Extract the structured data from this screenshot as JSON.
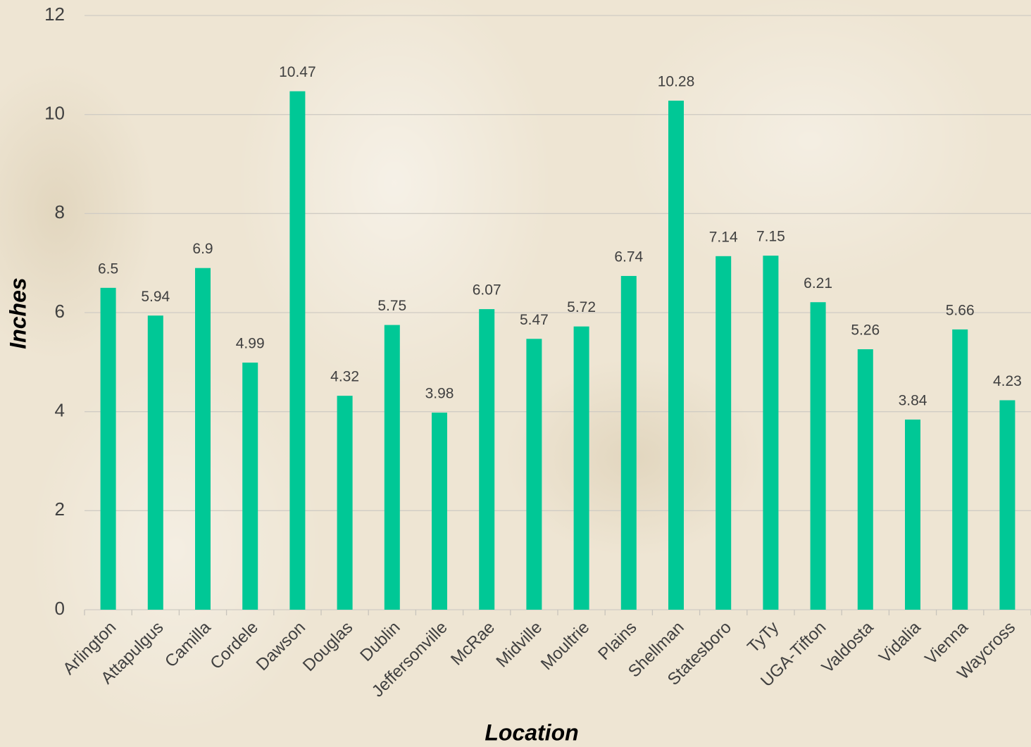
{
  "chart_data": {
    "type": "bar",
    "x_label": "Location",
    "y_label": "Inches",
    "categories": [
      "Arlington",
      "Attapulgus",
      "Camilla",
      "Cordele",
      "Dawson",
      "Douglas",
      "Dublin",
      "Jeffersonville",
      "McRae",
      "Midville",
      "Moultrie",
      "Plains",
      "Shellman",
      "Statesboro",
      "TyTy",
      "UGA-Tifton",
      "Valdosta",
      "Vidalia",
      "Vienna",
      "Waycross"
    ],
    "values": [
      6.5,
      5.94,
      6.9,
      4.99,
      10.47,
      4.32,
      5.75,
      3.98,
      6.07,
      5.47,
      5.72,
      6.74,
      10.28,
      7.14,
      7.15,
      6.21,
      5.26,
      3.84,
      5.66,
      4.23
    ],
    "color": "#00c896",
    "ylim": [
      0,
      12
    ],
    "yticks": [
      0,
      2,
      4,
      6,
      8,
      10,
      12
    ],
    "grid": true
  }
}
